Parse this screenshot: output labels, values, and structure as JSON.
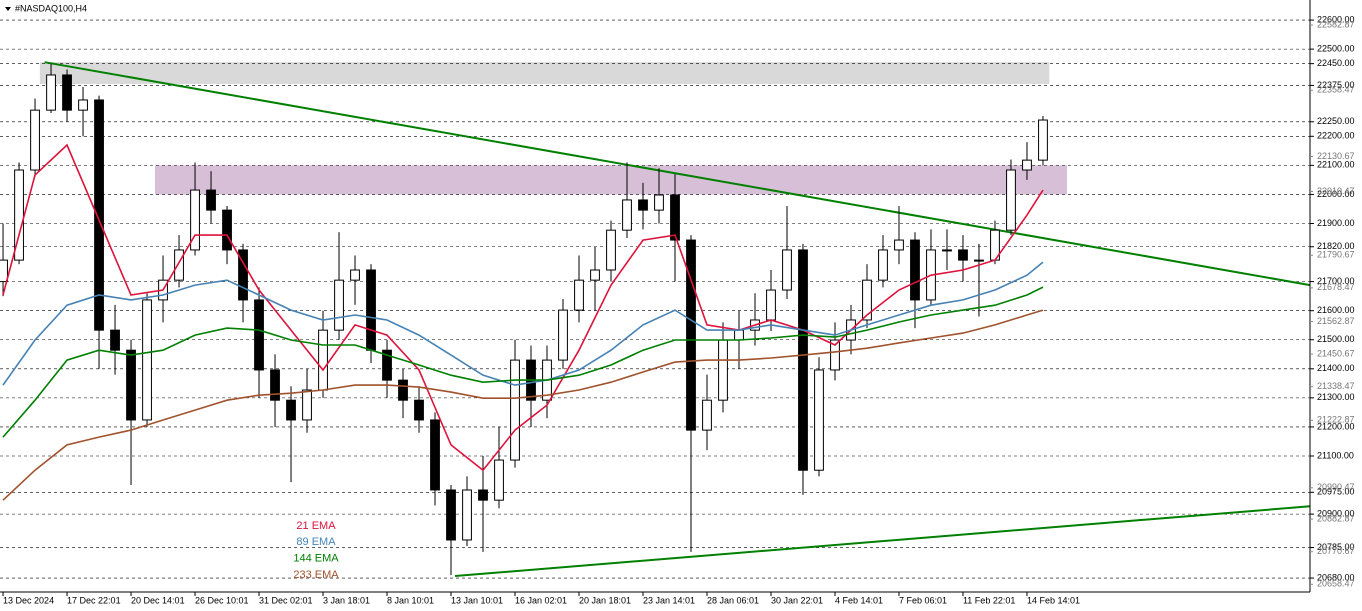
{
  "chart_data": {
    "type": "candlestick",
    "title": "#NASDAQ100,H4",
    "categories": [
      "13 Dec 2024",
      null,
      null,
      null,
      "17 Dec 22:01",
      null,
      null,
      null,
      "20 Dec 14:01",
      null,
      null,
      null,
      "26 Dec 10:01",
      null,
      null,
      null,
      "31 Dec 02:01",
      null,
      null,
      null,
      "3 Jan 18:01",
      null,
      null,
      null,
      "8 Jan 10:01",
      null,
      null,
      null,
      "13 Jan 10:01",
      null,
      null,
      null,
      "16 Jan 02:01",
      null,
      null,
      null,
      "20 Jan 18:01",
      null,
      null,
      null,
      "23 Jan 14:01",
      null,
      null,
      null,
      "28 Jan 06:01",
      null,
      null,
      null,
      "30 Jan 22:01",
      null,
      null,
      null,
      "4 Feb 14:01",
      null,
      null,
      null,
      "7 Feb 06:01",
      null,
      null,
      null,
      "11 Feb 22:01",
      null,
      null,
      null,
      "14 Feb 14:01",
      null
    ],
    "open": [
      21700,
      21774,
      22084,
      22290,
      22411,
      22290,
      22325,
      21533,
      21464,
      21224,
      21637,
      21705,
      21809,
      22015,
      21946,
      21809,
      21637,
      21396,
      21292,
      21224,
      21327,
      21533,
      21705,
      21740,
      21464,
      21361,
      21292,
      21224,
      20983,
      20811,
      20983,
      20948,
      21086,
      21430,
      21292,
      21430,
      21602,
      21705,
      21740,
      21877,
      21981,
      21946,
      21998,
      21843,
      21189,
      21292,
      21499,
      21533,
      21568,
      21671,
      21809,
      21051,
      21396,
      21499,
      21568,
      21705,
      21809,
      21843,
      21637,
      21809,
      21809,
      21774,
      21774,
      21877,
      22084,
      22118
    ],
    "high": [
      21900,
      22110,
      22330,
      22450,
      22430,
      22370,
      22340,
      21620,
      21500,
      21660,
      21790,
      21860,
      22110,
      22080,
      21960,
      21830,
      21680,
      21450,
      21340,
      21400,
      21600,
      21870,
      21790,
      21760,
      21500,
      21400,
      21340,
      21250,
      21000,
      21030,
      21100,
      21200,
      21500,
      21480,
      21480,
      21640,
      21790,
      21820,
      21910,
      22110,
      22040,
      22090,
      22070,
      21860,
      21380,
      21560,
      21600,
      21660,
      21740,
      21960,
      21830,
      21440,
      21560,
      21620,
      21760,
      21860,
      21960,
      21870,
      21880,
      21880,
      21860,
      21830,
      21910,
      22120,
      22180,
      22270
    ],
    "low": [
      21650,
      21760,
      22060,
      22280,
      22250,
      22200,
      21400,
      21380,
      21000,
      21200,
      21560,
      21680,
      21790,
      21900,
      21760,
      21560,
      21300,
      21200,
      21010,
      21180,
      21300,
      21500,
      21620,
      21420,
      21300,
      21230,
      21180,
      20930,
      20690,
      20790,
      20770,
      20920,
      21060,
      21200,
      21230,
      21400,
      21560,
      21600,
      21700,
      21850,
      21880,
      21900,
      21700,
      20770,
      21120,
      21250,
      21400,
      21480,
      21530,
      21640,
      20966,
      21030,
      21360,
      21450,
      21540,
      21680,
      21760,
      21540,
      21620,
      21740,
      21700,
      21580,
      21760,
      21860,
      22050,
      22100
    ],
    "close": [
      21774,
      22084,
      22290,
      22411,
      22290,
      22325,
      21533,
      21464,
      21224,
      21637,
      21705,
      21809,
      22015,
      21946,
      21809,
      21637,
      21396,
      21292,
      21224,
      21327,
      21533,
      21705,
      21740,
      21464,
      21361,
      21292,
      21224,
      20983,
      20811,
      20983,
      20948,
      21086,
      21430,
      21292,
      21430,
      21602,
      21705,
      21740,
      21877,
      21981,
      21946,
      21998,
      21843,
      21189,
      21292,
      21499,
      21533,
      21568,
      21671,
      21809,
      21051,
      21396,
      21499,
      21568,
      21705,
      21809,
      21843,
      21637,
      21809,
      21809,
      21774,
      21774,
      21877,
      22084,
      22118,
      22256
    ],
    "up_color": "#ffffff",
    "down_color": "#000000",
    "xlim": [
      -0.19,
      81.69
    ],
    "ylim": [
      20632,
      22669
    ],
    "grid": true,
    "yticks": [
      {
        "value": 22600,
        "label": "22600.00"
      },
      {
        "value": 22500,
        "label": "22500.00"
      },
      {
        "value": 22450,
        "label": "22450.00"
      },
      {
        "value": 22375,
        "label": "22375.00"
      },
      {
        "value": 22250,
        "label": "22250.00"
      },
      {
        "value": 22200,
        "label": "22200.00"
      },
      {
        "value": 22100,
        "label": "22100.00"
      },
      {
        "value": 22000,
        "label": "22000.00"
      },
      {
        "value": 21900,
        "label": "21900.00"
      },
      {
        "value": 21820,
        "label": "21820.00"
      },
      {
        "value": 21700,
        "label": "21700.00"
      },
      {
        "value": 21600,
        "label": "21600.00"
      },
      {
        "value": 21500,
        "label": "21500.00"
      },
      {
        "value": 21400,
        "label": "21400.00"
      },
      {
        "value": 21300,
        "label": "21300.00"
      },
      {
        "value": 21200,
        "label": "21200.00"
      },
      {
        "value": 21100,
        "label": "21100.00"
      },
      {
        "value": 20975,
        "label": "20975.00"
      },
      {
        "value": 20900,
        "label": "20900.00"
      },
      {
        "value": 20785,
        "label": "20785.00"
      },
      {
        "value": 20680,
        "label": "20680.00"
      }
    ],
    "minor_yticks": [
      {
        "value": 22582.87,
        "label": "22582.87"
      },
      {
        "value": 22358.47,
        "label": "22358.47"
      },
      {
        "value": 22130.67,
        "label": "22130.67"
      },
      {
        "value": 22010.47,
        "label": "22010.47"
      },
      {
        "value": 21790.67,
        "label": "21790.67"
      },
      {
        "value": 21678.47,
        "label": "21678.47"
      },
      {
        "value": 21562.87,
        "label": "21562.87"
      },
      {
        "value": 21450.67,
        "label": "21450.67"
      },
      {
        "value": 21338.47,
        "label": "21338.47"
      },
      {
        "value": 21222.87,
        "label": "21222.87"
      },
      {
        "value": 20990.47,
        "label": "20990.47"
      },
      {
        "value": 20882.87,
        "label": "20882.87"
      },
      {
        "value": 20770.67,
        "label": "20770.67"
      },
      {
        "value": 20658.47,
        "label": "20658.47"
      }
    ],
    "series": [
      {
        "name": "21 EMA",
        "color": "#dc143c",
        "x": [
          0,
          2,
          4,
          6,
          8,
          10,
          12,
          14,
          16,
          18,
          20,
          22,
          24,
          26,
          28,
          30,
          32,
          34,
          36,
          38,
          40,
          42,
          44,
          46,
          48,
          50,
          52,
          54,
          56,
          58,
          60,
          62,
          64,
          65
        ],
        "values": [
          21654,
          22067,
          22170,
          21912,
          21654,
          21671,
          21860,
          21860,
          21671,
          21533,
          21396,
          21551,
          21516,
          21396,
          21138,
          21051,
          21189,
          21275,
          21464,
          21688,
          21843,
          21860,
          21551,
          21533,
          21568,
          21533,
          21482,
          21585,
          21671,
          21722,
          21740,
          21774,
          21929,
          22015
        ]
      },
      {
        "name": "89 EMA",
        "color": "#4682b4",
        "x": [
          0,
          2,
          4,
          6,
          8,
          10,
          12,
          14,
          16,
          18,
          20,
          22,
          24,
          26,
          28,
          30,
          32,
          34,
          36,
          38,
          40,
          42,
          44,
          46,
          48,
          50,
          52,
          54,
          56,
          58,
          60,
          62,
          64,
          65
        ],
        "values": [
          21344,
          21499,
          21619,
          21654,
          21637,
          21654,
          21688,
          21705,
          21654,
          21602,
          21568,
          21585,
          21568,
          21516,
          21447,
          21378,
          21344,
          21361,
          21396,
          21464,
          21551,
          21602,
          21533,
          21533,
          21551,
          21533,
          21516,
          21551,
          21585,
          21619,
          21637,
          21671,
          21722,
          21767
        ]
      },
      {
        "name": "144 EMA",
        "color": "#008000",
        "x": [
          0,
          2,
          4,
          6,
          8,
          10,
          12,
          14,
          16,
          18,
          20,
          22,
          24,
          26,
          28,
          30,
          32,
          34,
          36,
          38,
          40,
          42,
          44,
          46,
          48,
          50,
          52,
          54,
          56,
          58,
          60,
          62,
          64,
          65
        ],
        "values": [
          21165,
          21292,
          21430,
          21464,
          21447,
          21464,
          21516,
          21540,
          21533,
          21499,
          21482,
          21482,
          21447,
          21413,
          21378,
          21354,
          21361,
          21361,
          21378,
          21413,
          21464,
          21499,
          21499,
          21499,
          21506,
          21516,
          21509,
          21533,
          21561,
          21585,
          21602,
          21619,
          21654,
          21681
        ]
      },
      {
        "name": "233 EMA",
        "color": "#a0522d",
        "x": [
          0,
          2,
          4,
          6,
          8,
          10,
          12,
          14,
          16,
          18,
          20,
          22,
          24,
          26,
          28,
          30,
          32,
          34,
          36,
          38,
          40,
          42,
          44,
          46,
          48,
          50,
          52,
          54,
          56,
          58,
          60,
          62,
          64,
          65
        ],
        "values": [
          20948,
          21051,
          21138,
          21165,
          21189,
          21224,
          21258,
          21292,
          21309,
          21316,
          21327,
          21344,
          21344,
          21337,
          21320,
          21299,
          21299,
          21309,
          21327,
          21354,
          21389,
          21423,
          21430,
          21430,
          21437,
          21447,
          21458,
          21471,
          21489,
          21506,
          21523,
          21551,
          21585,
          21602
        ]
      }
    ],
    "zones": [
      {
        "x": [
          2.3,
          65.4
        ],
        "range": [
          22380,
          22455
        ],
        "color": "#d9d9d9"
      },
      {
        "x": [
          9.5,
          66.5
        ],
        "range": [
          22000,
          22100
        ],
        "color": "#d8bfd8"
      }
    ],
    "trendlines": [
      {
        "x": [
          2.6,
          81.69
        ],
        "values": [
          22455,
          21688
        ],
        "color": "#008000"
      },
      {
        "x": [
          28.25,
          81.69
        ],
        "values": [
          20687,
          20927
        ],
        "color": "#008000"
      }
    ]
  }
}
